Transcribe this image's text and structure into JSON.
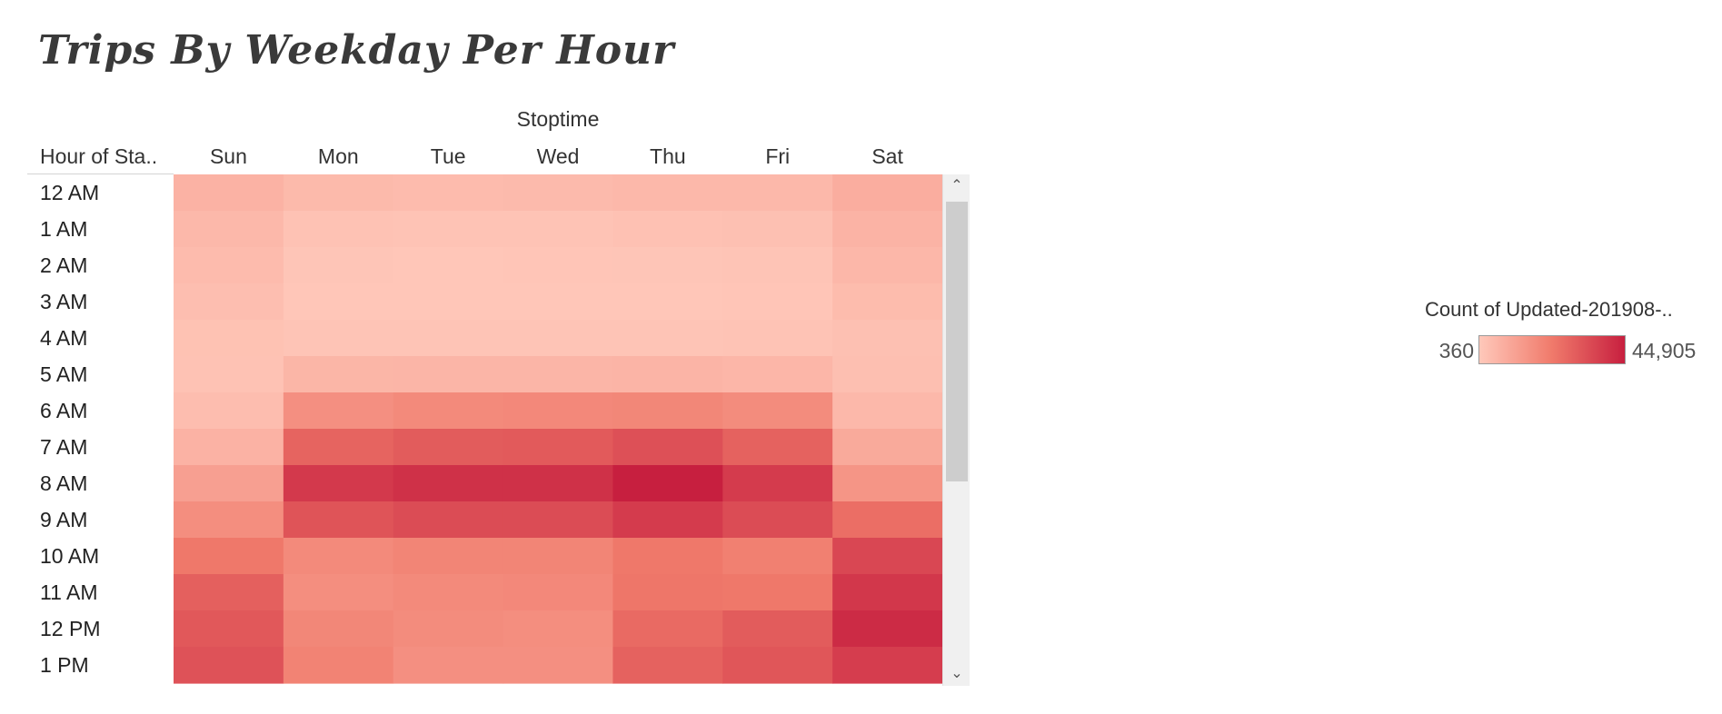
{
  "dashboard": {
    "title": "Trips By Weekday Per Hour",
    "column_group_header": "Stoptime",
    "row_header": "Hour of Sta..",
    "scroll": {
      "up_glyph": "⌃",
      "down_glyph": "⌄"
    }
  },
  "legend": {
    "title": "Count of Updated-201908-..",
    "min_label": "360",
    "max_label": "44,905",
    "min_value": 360,
    "max_value": 44905,
    "colors": [
      "#ffc8ba",
      "#f07a6b",
      "#c71f3f"
    ]
  },
  "chart_data": {
    "type": "heatmap",
    "title": "Trips By Weekday Per Hour",
    "xlabel": "Stoptime",
    "ylabel": "Hour of Sta..",
    "x": [
      "Sun",
      "Mon",
      "Tue",
      "Wed",
      "Thu",
      "Fri",
      "Sat"
    ],
    "y": [
      "12 AM",
      "1 AM",
      "2 AM",
      "3 AM",
      "4 AM",
      "5 AM",
      "6 AM",
      "7 AM",
      "8 AM",
      "9 AM",
      "10 AM",
      "11 AM",
      "12 PM",
      "1 PM"
    ],
    "values": [
      [
        6500,
        4500,
        4000,
        4300,
        4800,
        5000,
        8000
      ],
      [
        5000,
        2000,
        1700,
        1900,
        2300,
        2600,
        6300
      ],
      [
        4000,
        1200,
        1000,
        1100,
        1300,
        1600,
        5200
      ],
      [
        3200,
        900,
        800,
        800,
        900,
        1100,
        3900
      ],
      [
        2200,
        1500,
        1500,
        1500,
        1600,
        1800,
        2700
      ],
      [
        2000,
        5600,
        5800,
        5800,
        6000,
        5500,
        3000
      ],
      [
        3400,
        16500,
        18000,
        18500,
        19000,
        17500,
        5000
      ],
      [
        6500,
        28000,
        30000,
        30500,
        33000,
        28500,
        9000
      ],
      [
        12000,
        38500,
        40500,
        40500,
        44905,
        38000,
        15000
      ],
      [
        17000,
        32000,
        34000,
        34000,
        38000,
        34000,
        25500
      ],
      [
        23000,
        18000,
        19500,
        19500,
        23000,
        21000,
        35000
      ],
      [
        29000,
        17000,
        18000,
        18500,
        23500,
        23000,
        39000
      ],
      [
        31000,
        19000,
        17500,
        17000,
        26500,
        30000,
        42000
      ],
      [
        32500,
        20000,
        16500,
        16500,
        28500,
        31500,
        37500
      ]
    ],
    "color_range": [
      360,
      44905
    ]
  }
}
